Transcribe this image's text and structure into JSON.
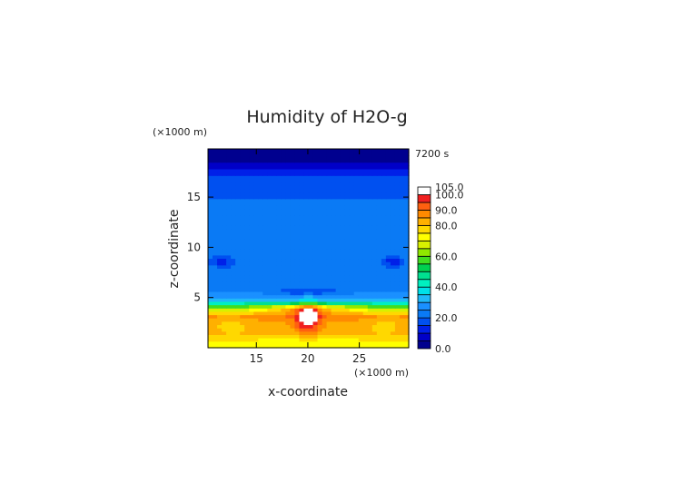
{
  "chart_data": {
    "type": "heatmap",
    "title": "Humidity of H2O-g",
    "time_label": "7200 s",
    "xlabel": "x-coordinate",
    "ylabel": "z-coordinate",
    "x_unit": "(×1000 m)",
    "y_unit": "(×1000 m)",
    "xlim": [
      10.3,
      29.8
    ],
    "ylim": [
      0,
      19.8
    ],
    "x_ticks": [
      "15",
      "20",
      "25"
    ],
    "y_ticks": [
      "5",
      "10",
      "15"
    ],
    "colorbar": {
      "min": 0,
      "max": 105,
      "labels": [
        "105.0",
        "100.0",
        "90.0",
        "80.0",
        "60.0",
        "40.0",
        "20.0",
        "0.0"
      ],
      "levels": [
        0,
        5,
        10,
        15,
        20,
        25,
        30,
        35,
        40,
        45,
        50,
        55,
        60,
        65,
        70,
        75,
        80,
        85,
        90,
        95,
        100,
        105
      ],
      "colors": [
        "#00008f",
        "#0000c8",
        "#0020e8",
        "#0050f0",
        "#0a7af5",
        "#1a90ff",
        "#20b8f8",
        "#00e0e8",
        "#00f0c0",
        "#00e090",
        "#00d050",
        "#40dd20",
        "#90e800",
        "#d8f000",
        "#ffff00",
        "#ffd800",
        "#ffb000",
        "#ff8a00",
        "#ff6010",
        "#f02020",
        "#ffffff"
      ]
    },
    "approx_profile": {
      "z_km": [
        0.5,
        1.5,
        2.5,
        3.2,
        3.7,
        4.2,
        4.8,
        6,
        10,
        15,
        17,
        18,
        19
      ],
      "humidity_percent": [
        75,
        85,
        85,
        88,
        70,
        55,
        30,
        22,
        22,
        20,
        17,
        8,
        3
      ]
    }
  }
}
